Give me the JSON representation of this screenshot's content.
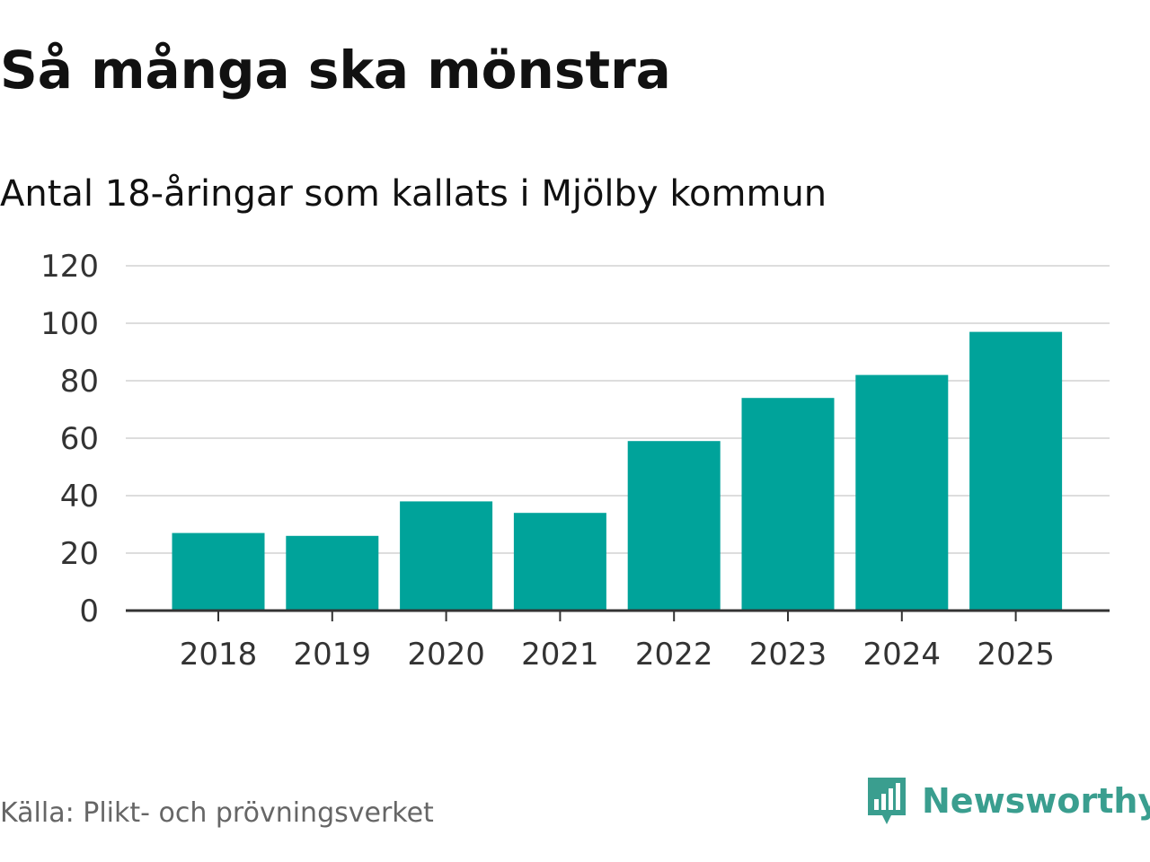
{
  "header": {
    "title": "Så många ska mönstra",
    "subtitle": "Antal 18-åringar som kallats i Mjölby kommun"
  },
  "footer": {
    "source": "Källa: Plikt- och prövningsverket",
    "brand": "Newsworthy",
    "brand_icon": "newsworthy-logo-icon"
  },
  "colors": {
    "bar": "#00a39a",
    "grid": "#dddddd",
    "axis": "#333333",
    "brand": "#3a9e8f"
  },
  "chart_data": {
    "type": "bar",
    "title": "Så många ska mönstra",
    "subtitle": "Antal 18-åringar som kallats i Mjölby kommun",
    "categories": [
      "2018",
      "2019",
      "2020",
      "2021",
      "2022",
      "2023",
      "2024",
      "2025"
    ],
    "values": [
      27,
      26,
      38,
      34,
      59,
      74,
      82,
      97
    ],
    "xlabel": "",
    "ylabel": "",
    "ylim": [
      0,
      120
    ],
    "yticks": [
      0,
      20,
      40,
      60,
      80,
      100,
      120
    ],
    "grid": true,
    "legend": "none"
  }
}
